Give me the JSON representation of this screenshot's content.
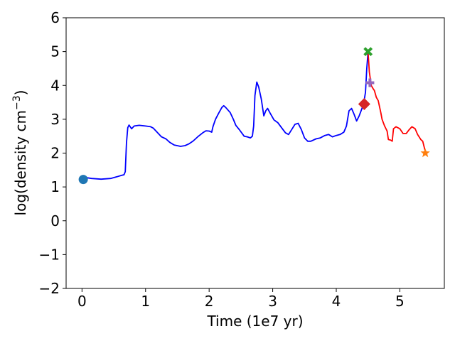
{
  "chart_data": {
    "type": "line",
    "xlabel": "Time (1e7 yr)",
    "ylabel_main": "log(density cm",
    "ylabel_sup": "−3",
    "ylabel_close": ")",
    "xlim": [
      -0.25,
      5.7
    ],
    "ylim": [
      -2,
      6
    ],
    "xticks": [
      {
        "value": 0,
        "label": "0"
      },
      {
        "value": 1,
        "label": "1"
      },
      {
        "value": 2,
        "label": "2"
      },
      {
        "value": 3,
        "label": "3"
      },
      {
        "value": 4,
        "label": "4"
      },
      {
        "value": 5,
        "label": "5"
      }
    ],
    "yticks": [
      {
        "value": -2,
        "label": "−2"
      },
      {
        "value": -1,
        "label": "−1"
      },
      {
        "value": 0,
        "label": "0"
      },
      {
        "value": 1,
        "label": "1"
      },
      {
        "value": 2,
        "label": "2"
      },
      {
        "value": 3,
        "label": "3"
      },
      {
        "value": 4,
        "label": "4"
      },
      {
        "value": 5,
        "label": "5"
      },
      {
        "value": 6,
        "label": "6"
      }
    ],
    "series": [
      {
        "color": "#0000ff",
        "points": [
          [
            0.02,
            1.22
          ],
          [
            0.05,
            1.28
          ],
          [
            0.15,
            1.25
          ],
          [
            0.3,
            1.23
          ],
          [
            0.45,
            1.25
          ],
          [
            0.55,
            1.3
          ],
          [
            0.62,
            1.34
          ],
          [
            0.66,
            1.36
          ],
          [
            0.68,
            1.45
          ],
          [
            0.7,
            2.3
          ],
          [
            0.72,
            2.75
          ],
          [
            0.74,
            2.83
          ],
          [
            0.78,
            2.72
          ],
          [
            0.82,
            2.8
          ],
          [
            0.9,
            2.82
          ],
          [
            1.0,
            2.8
          ],
          [
            1.08,
            2.78
          ],
          [
            1.12,
            2.74
          ],
          [
            1.18,
            2.62
          ],
          [
            1.25,
            2.48
          ],
          [
            1.32,
            2.42
          ],
          [
            1.38,
            2.32
          ],
          [
            1.45,
            2.24
          ],
          [
            1.55,
            2.2
          ],
          [
            1.62,
            2.22
          ],
          [
            1.68,
            2.27
          ],
          [
            1.75,
            2.36
          ],
          [
            1.82,
            2.48
          ],
          [
            1.9,
            2.6
          ],
          [
            1.95,
            2.66
          ],
          [
            2.0,
            2.65
          ],
          [
            2.04,
            2.62
          ],
          [
            2.06,
            2.78
          ],
          [
            2.1,
            3.0
          ],
          [
            2.15,
            3.18
          ],
          [
            2.2,
            3.35
          ],
          [
            2.23,
            3.4
          ],
          [
            2.26,
            3.35
          ],
          [
            2.33,
            3.2
          ],
          [
            2.38,
            3.0
          ],
          [
            2.42,
            2.82
          ],
          [
            2.48,
            2.68
          ],
          [
            2.55,
            2.5
          ],
          [
            2.6,
            2.48
          ],
          [
            2.65,
            2.45
          ],
          [
            2.68,
            2.5
          ],
          [
            2.7,
            2.8
          ],
          [
            2.72,
            3.7
          ],
          [
            2.75,
            4.1
          ],
          [
            2.78,
            3.95
          ],
          [
            2.82,
            3.6
          ],
          [
            2.86,
            3.1
          ],
          [
            2.89,
            3.25
          ],
          [
            2.92,
            3.32
          ],
          [
            2.96,
            3.18
          ],
          [
            3.02,
            2.98
          ],
          [
            3.08,
            2.9
          ],
          [
            3.14,
            2.75
          ],
          [
            3.2,
            2.6
          ],
          [
            3.25,
            2.55
          ],
          [
            3.3,
            2.7
          ],
          [
            3.35,
            2.85
          ],
          [
            3.4,
            2.88
          ],
          [
            3.45,
            2.7
          ],
          [
            3.5,
            2.45
          ],
          [
            3.55,
            2.35
          ],
          [
            3.6,
            2.35
          ],
          [
            3.68,
            2.42
          ],
          [
            3.75,
            2.45
          ],
          [
            3.82,
            2.52
          ],
          [
            3.88,
            2.55
          ],
          [
            3.94,
            2.48
          ],
          [
            4.0,
            2.52
          ],
          [
            4.06,
            2.55
          ],
          [
            4.12,
            2.62
          ],
          [
            4.16,
            2.8
          ],
          [
            4.2,
            3.25
          ],
          [
            4.24,
            3.32
          ],
          [
            4.28,
            3.15
          ],
          [
            4.32,
            2.95
          ],
          [
            4.36,
            3.1
          ],
          [
            4.4,
            3.3
          ],
          [
            4.43,
            3.45
          ],
          [
            4.46,
            3.8
          ],
          [
            4.48,
            4.5
          ],
          [
            4.5,
            5.0
          ]
        ]
      },
      {
        "color": "#ff0000",
        "points": [
          [
            4.5,
            5.0
          ],
          [
            4.52,
            4.4
          ],
          [
            4.55,
            4.0
          ],
          [
            4.58,
            3.9
          ],
          [
            4.6,
            3.85
          ],
          [
            4.63,
            3.65
          ],
          [
            4.66,
            3.55
          ],
          [
            4.7,
            3.2
          ],
          [
            4.72,
            3.0
          ],
          [
            4.76,
            2.8
          ],
          [
            4.8,
            2.65
          ],
          [
            4.82,
            2.4
          ],
          [
            4.86,
            2.38
          ],
          [
            4.88,
            2.35
          ],
          [
            4.9,
            2.72
          ],
          [
            4.94,
            2.78
          ],
          [
            5.0,
            2.72
          ],
          [
            5.05,
            2.58
          ],
          [
            5.1,
            2.58
          ],
          [
            5.15,
            2.7
          ],
          [
            5.19,
            2.78
          ],
          [
            5.24,
            2.72
          ],
          [
            5.28,
            2.55
          ],
          [
            5.33,
            2.4
          ],
          [
            5.36,
            2.35
          ],
          [
            5.38,
            2.2
          ],
          [
            5.4,
            2.05
          ]
        ]
      }
    ],
    "markers": [
      {
        "shape": "circle",
        "color": "#1f77b4",
        "x": 0.02,
        "y": 1.22
      },
      {
        "shape": "diamond",
        "color": "#d62728",
        "x": 4.44,
        "y": 3.45
      },
      {
        "shape": "x",
        "color": "#2ca02c",
        "x": 4.5,
        "y": 5.0
      },
      {
        "shape": "plus",
        "color": "#9467bd",
        "x": 4.53,
        "y": 4.08
      },
      {
        "shape": "star",
        "color": "#ff7f0e",
        "x": 5.4,
        "y": 2.0
      }
    ]
  }
}
